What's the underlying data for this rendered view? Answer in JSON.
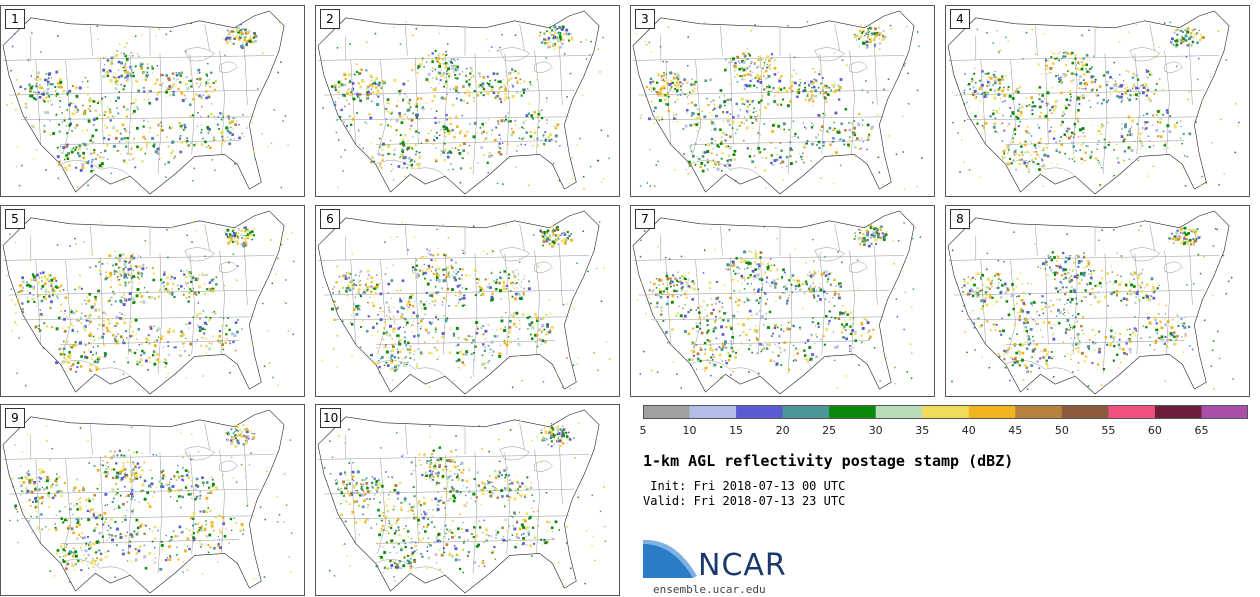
{
  "panels": [
    {
      "label": "1"
    },
    {
      "label": "2"
    },
    {
      "label": "3"
    },
    {
      "label": "4"
    },
    {
      "label": "5"
    },
    {
      "label": "6"
    },
    {
      "label": "7"
    },
    {
      "label": "8"
    },
    {
      "label": "9"
    },
    {
      "label": "10"
    }
  ],
  "colorbar": {
    "colors": [
      "#a0a0a0",
      "#b4bee8",
      "#5a5ad2",
      "#4b9696",
      "#0a8a0a",
      "#b7dcb7",
      "#f0dc5a",
      "#f0b41e",
      "#b4823c",
      "#8c5a3c",
      "#f0507d",
      "#6e1e3c",
      "#aa50aa"
    ],
    "ticks": [
      "5",
      "10",
      "15",
      "20",
      "25",
      "30",
      "35",
      "40",
      "45",
      "50",
      "55",
      "60",
      "65"
    ]
  },
  "title": "1-km AGL reflectivity postage stamp (dBZ)",
  "init": " Init: Fri 2018-07-13 00 UTC",
  "valid": "Valid: Fri 2018-07-13 23 UTC",
  "logo": {
    "name": "NCAR",
    "url": "ensemble.ucar.edu"
  }
}
